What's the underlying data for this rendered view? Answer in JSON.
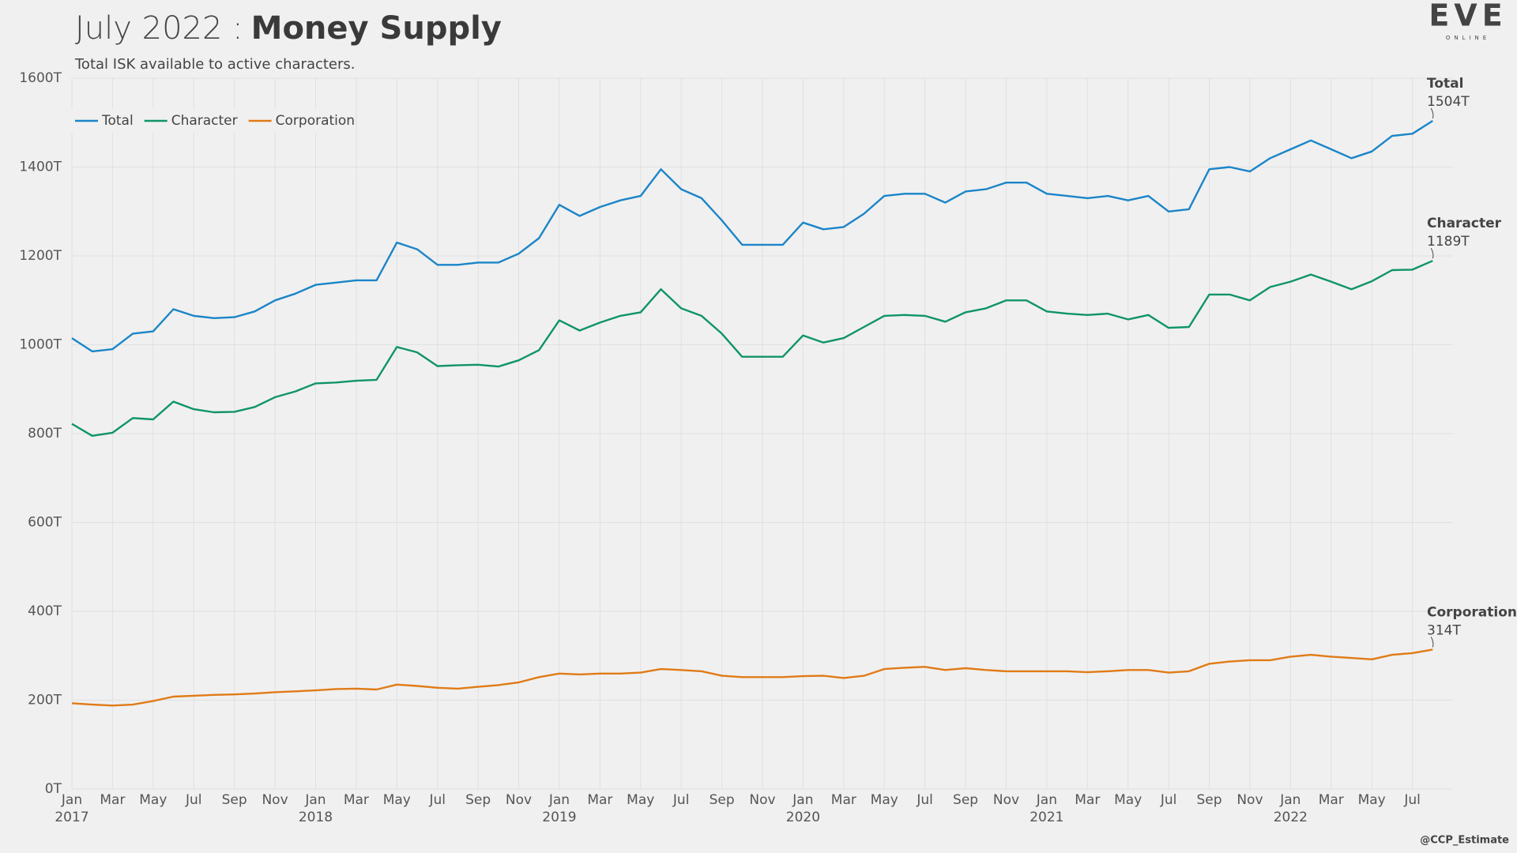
{
  "chart_data": {
    "type": "line",
    "title": "July 2022 :",
    "title_bold": "Money Supply",
    "subtitle": "Total ISK available to active characters.",
    "logo": "EVE",
    "logo_sub": "ONLINE",
    "credit": "@CCP_Estimate",
    "legend": "top-left",
    "grid": true,
    "x": [
      "2017-01",
      "2017-02",
      "2017-03",
      "2017-04",
      "2017-05",
      "2017-06",
      "2017-07",
      "2017-08",
      "2017-09",
      "2017-10",
      "2017-11",
      "2017-12",
      "2018-01",
      "2018-02",
      "2018-03",
      "2018-04",
      "2018-05",
      "2018-06",
      "2018-07",
      "2018-08",
      "2018-09",
      "2018-10",
      "2018-11",
      "2018-12",
      "2019-01",
      "2019-02",
      "2019-03",
      "2019-04",
      "2019-05",
      "2019-06",
      "2019-07",
      "2019-08",
      "2019-09",
      "2019-10",
      "2019-11",
      "2019-12",
      "2020-01",
      "2020-02",
      "2020-03",
      "2020-04",
      "2020-05",
      "2020-06",
      "2020-07",
      "2020-08",
      "2020-09",
      "2020-10",
      "2020-11",
      "2020-12",
      "2021-01",
      "2021-02",
      "2021-03",
      "2021-04",
      "2021-05",
      "2021-06",
      "2021-07",
      "2021-08",
      "2021-09",
      "2021-10",
      "2021-11",
      "2021-12",
      "2022-01",
      "2022-02",
      "2022-03",
      "2022-04",
      "2022-05",
      "2022-06",
      "2022-07",
      "2022-08"
    ],
    "xlim": [
      "2017-01",
      "2022-09"
    ],
    "xticks": [
      {
        "value": "2017-01",
        "label": "Jan"
      },
      {
        "value": "2017-03",
        "label": "Mar"
      },
      {
        "value": "2017-05",
        "label": "May"
      },
      {
        "value": "2017-07",
        "label": "Jul"
      },
      {
        "value": "2017-09",
        "label": "Sep"
      },
      {
        "value": "2017-11",
        "label": "Nov"
      },
      {
        "value": "2018-01",
        "label": "Jan"
      },
      {
        "value": "2018-03",
        "label": "Mar"
      },
      {
        "value": "2018-05",
        "label": "May"
      },
      {
        "value": "2018-07",
        "label": "Jul"
      },
      {
        "value": "2018-09",
        "label": "Sep"
      },
      {
        "value": "2018-11",
        "label": "Nov"
      },
      {
        "value": "2019-01",
        "label": "Jan"
      },
      {
        "value": "2019-03",
        "label": "Mar"
      },
      {
        "value": "2019-05",
        "label": "May"
      },
      {
        "value": "2019-07",
        "label": "Jul"
      },
      {
        "value": "2019-09",
        "label": "Sep"
      },
      {
        "value": "2019-11",
        "label": "Nov"
      },
      {
        "value": "2020-01",
        "label": "Jan"
      },
      {
        "value": "2020-03",
        "label": "Mar"
      },
      {
        "value": "2020-05",
        "label": "May"
      },
      {
        "value": "2020-07",
        "label": "Jul"
      },
      {
        "value": "2020-09",
        "label": "Sep"
      },
      {
        "value": "2020-11",
        "label": "Nov"
      },
      {
        "value": "2021-01",
        "label": "Jan"
      },
      {
        "value": "2021-03",
        "label": "Mar"
      },
      {
        "value": "2021-05",
        "label": "May"
      },
      {
        "value": "2021-07",
        "label": "Jul"
      },
      {
        "value": "2021-09",
        "label": "Sep"
      },
      {
        "value": "2021-11",
        "label": "Nov"
      },
      {
        "value": "2022-01",
        "label": "Jan"
      },
      {
        "value": "2022-03",
        "label": "Mar"
      },
      {
        "value": "2022-05",
        "label": "May"
      },
      {
        "value": "2022-07",
        "label": "Jul"
      }
    ],
    "xtick_years": [
      {
        "value": "2017-01",
        "label": "2017"
      },
      {
        "value": "2018-01",
        "label": "2018"
      },
      {
        "value": "2019-01",
        "label": "2019"
      },
      {
        "value": "2020-01",
        "label": "2020"
      },
      {
        "value": "2021-01",
        "label": "2021"
      },
      {
        "value": "2022-01",
        "label": "2022"
      }
    ],
    "ylim": [
      0,
      1600
    ],
    "yticks": [
      {
        "value": 0,
        "label": "0T"
      },
      {
        "value": 200,
        "label": "200T"
      },
      {
        "value": 400,
        "label": "400T"
      },
      {
        "value": 600,
        "label": "600T"
      },
      {
        "value": 800,
        "label": "800T"
      },
      {
        "value": 1000,
        "label": "1000T"
      },
      {
        "value": 1200,
        "label": "1200T"
      },
      {
        "value": 1400,
        "label": "1400T"
      },
      {
        "value": 1600,
        "label": "1600T"
      }
    ],
    "series": [
      {
        "name": "Total",
        "color": "#1a85c8",
        "label": "1504T",
        "values": [
          1015,
          985,
          990,
          1025,
          1030,
          1080,
          1065,
          1060,
          1062,
          1075,
          1100,
          1115,
          1135,
          1140,
          1145,
          1145,
          1230,
          1215,
          1180,
          1180,
          1185,
          1185,
          1205,
          1240,
          1315,
          1290,
          1310,
          1325,
          1335,
          1395,
          1350,
          1330,
          1280,
          1225,
          1225,
          1225,
          1275,
          1260,
          1265,
          1295,
          1335,
          1340,
          1340,
          1320,
          1345,
          1350,
          1365,
          1365,
          1340,
          1335,
          1330,
          1335,
          1325,
          1335,
          1300,
          1305,
          1395,
          1400,
          1390,
          1420,
          1440,
          1460,
          1440,
          1420,
          1435,
          1470,
          1475,
          1504
        ]
      },
      {
        "name": "Character",
        "color": "#0f9467",
        "label": "1189T",
        "values": [
          822,
          795,
          802,
          835,
          832,
          872,
          855,
          848,
          849,
          860,
          882,
          895,
          913,
          915,
          919,
          921,
          995,
          983,
          952,
          954,
          955,
          951,
          965,
          988,
          1055,
          1032,
          1050,
          1065,
          1073,
          1125,
          1082,
          1065,
          1025,
          973,
          973,
          973,
          1021,
          1005,
          1015,
          1040,
          1065,
          1067,
          1065,
          1052,
          1073,
          1082,
          1100,
          1100,
          1075,
          1070,
          1067,
          1070,
          1057,
          1067,
          1038,
          1040,
          1113,
          1113,
          1100,
          1130,
          1142,
          1158,
          1142,
          1125,
          1143,
          1168,
          1169,
          1189
        ]
      },
      {
        "name": "Corporation",
        "color": "#e07b17",
        "label": "314T",
        "values": [
          193,
          190,
          188,
          190,
          198,
          208,
          210,
          212,
          213,
          215,
          218,
          220,
          222,
          225,
          226,
          224,
          235,
          232,
          228,
          226,
          230,
          234,
          240,
          252,
          260,
          258,
          260,
          260,
          262,
          270,
          268,
          265,
          255,
          252,
          252,
          252,
          254,
          255,
          250,
          255,
          270,
          273,
          275,
          268,
          272,
          268,
          265,
          265,
          265,
          265,
          263,
          265,
          268,
          268,
          262,
          265,
          282,
          287,
          290,
          290,
          298,
          302,
          298,
          295,
          292,
          302,
          306,
          314
        ]
      }
    ]
  }
}
